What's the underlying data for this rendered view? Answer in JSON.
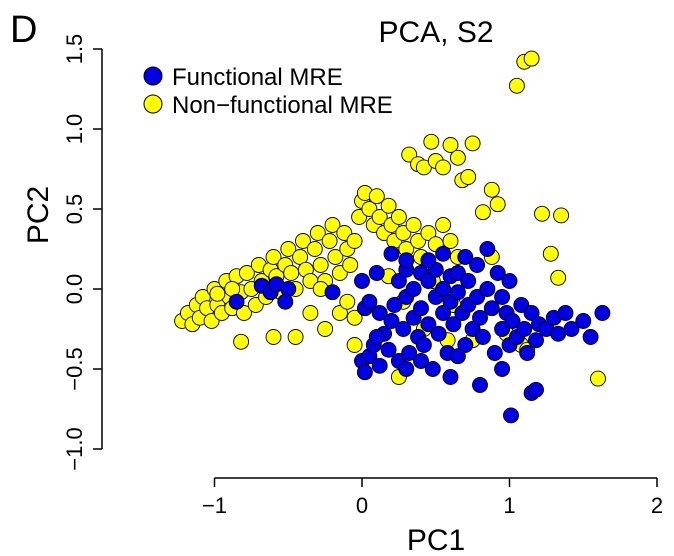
{
  "panel_label": "D",
  "chart_data": {
    "type": "scatter",
    "title": "PCA, S2",
    "xlabel": "PC1",
    "ylabel": "PC2",
    "xlim": [
      -1.3,
      2.05
    ],
    "ylim": [
      -1.15,
      1.6
    ],
    "x_ticks": [
      -1,
      0,
      1,
      2
    ],
    "x_tick_labels": [
      "−1",
      "0",
      "1",
      "2"
    ],
    "y_ticks": [
      -1.0,
      -0.5,
      0.0,
      0.5,
      1.0,
      1.5
    ],
    "y_tick_labels": [
      "−1.0",
      "−0.5",
      "0.0",
      "0.5",
      "1.0",
      "1.5"
    ],
    "grid": false,
    "legend_position": "top-left",
    "series": [
      {
        "name": "Functional MRE",
        "color": "#0000e6",
        "points": [
          [
            -0.85,
            -0.08
          ],
          [
            -0.68,
            0.02
          ],
          [
            -0.62,
            -0.02
          ],
          [
            -0.58,
            0.03
          ],
          [
            -0.5,
            0.0
          ],
          [
            -0.52,
            -0.08
          ],
          [
            -0.2,
            -0.02
          ],
          [
            0.0,
            0.05
          ],
          [
            0.02,
            -0.12
          ],
          [
            0.05,
            -0.08
          ],
          [
            0.1,
            0.1
          ],
          [
            0.12,
            -0.15
          ],
          [
            0.15,
            -0.28
          ],
          [
            0.0,
            -0.45
          ],
          [
            0.02,
            -0.52
          ],
          [
            0.05,
            -0.42
          ],
          [
            0.08,
            -0.35
          ],
          [
            0.1,
            -0.3
          ],
          [
            0.12,
            -0.48
          ],
          [
            0.18,
            -0.38
          ],
          [
            0.2,
            -0.2
          ],
          [
            0.22,
            -0.1
          ],
          [
            0.25,
            0.05
          ],
          [
            0.25,
            -0.45
          ],
          [
            0.28,
            -0.25
          ],
          [
            0.3,
            0.12
          ],
          [
            0.3,
            -0.05
          ],
          [
            0.32,
            -0.4
          ],
          [
            0.35,
            0.0
          ],
          [
            0.35,
            -0.18
          ],
          [
            0.38,
            -0.3
          ],
          [
            0.4,
            0.1
          ],
          [
            0.4,
            -0.12
          ],
          [
            0.42,
            -0.35
          ],
          [
            0.45,
            0.05
          ],
          [
            0.45,
            -0.22
          ],
          [
            0.48,
            -0.5
          ],
          [
            0.5,
            -0.05
          ],
          [
            0.5,
            0.12
          ],
          [
            0.52,
            -0.28
          ],
          [
            0.55,
            0.0
          ],
          [
            0.55,
            -0.15
          ],
          [
            0.58,
            -0.4
          ],
          [
            0.6,
            0.08
          ],
          [
            0.6,
            -0.08
          ],
          [
            0.62,
            -0.22
          ],
          [
            0.65,
            0.1
          ],
          [
            0.65,
            -0.02
          ],
          [
            0.68,
            -0.15
          ],
          [
            0.7,
            -0.35
          ],
          [
            0.72,
            0.05
          ],
          [
            0.72,
            -0.1
          ],
          [
            0.75,
            -0.25
          ],
          [
            0.78,
            0.15
          ],
          [
            0.78,
            -0.05
          ],
          [
            0.8,
            -0.18
          ],
          [
            0.82,
            -0.3
          ],
          [
            0.85,
            0.25
          ],
          [
            0.85,
            0.0
          ],
          [
            0.88,
            -0.12
          ],
          [
            0.9,
            -0.4
          ],
          [
            0.92,
            0.1
          ],
          [
            0.95,
            -0.05
          ],
          [
            0.95,
            -0.25
          ],
          [
            0.98,
            -0.15
          ],
          [
            1.0,
            0.05
          ],
          [
            1.0,
            -0.35
          ],
          [
            1.02,
            -0.2
          ],
          [
            1.05,
            -0.3
          ],
          [
            1.08,
            -0.1
          ],
          [
            1.1,
            -0.25
          ],
          [
            1.12,
            -0.4
          ],
          [
            1.15,
            -0.15
          ],
          [
            1.18,
            -0.32
          ],
          [
            1.2,
            -0.22
          ],
          [
            1.25,
            -0.25
          ],
          [
            1.3,
            -0.18
          ],
          [
            1.33,
            -0.28
          ],
          [
            1.38,
            -0.15
          ],
          [
            1.42,
            -0.25
          ],
          [
            1.5,
            -0.2
          ],
          [
            1.55,
            -0.3
          ],
          [
            1.63,
            -0.15
          ],
          [
            0.2,
            0.22
          ],
          [
            0.3,
            0.18
          ],
          [
            0.45,
            0.18
          ],
          [
            0.55,
            0.22
          ],
          [
            0.7,
            0.2
          ],
          [
            0.4,
            -0.45
          ],
          [
            0.6,
            -0.55
          ],
          [
            0.8,
            -0.6
          ],
          [
            0.95,
            -0.5
          ],
          [
            1.15,
            -0.65
          ],
          [
            1.18,
            -0.63
          ],
          [
            1.01,
            -0.79
          ],
          [
            0.3,
            -0.5
          ],
          [
            0.65,
            -0.42
          ]
        ]
      },
      {
        "name": "Non−functional MRE",
        "color": "#ffff00",
        "points": [
          [
            -1.22,
            -0.2
          ],
          [
            -1.18,
            -0.15
          ],
          [
            -1.15,
            -0.22
          ],
          [
            -1.12,
            -0.1
          ],
          [
            -1.1,
            -0.18
          ],
          [
            -1.08,
            -0.05
          ],
          [
            -1.05,
            -0.12
          ],
          [
            -1.02,
            -0.2
          ],
          [
            -1.0,
            0.0
          ],
          [
            -0.98,
            -0.1
          ],
          [
            -0.95,
            -0.15
          ],
          [
            -0.92,
            0.05
          ],
          [
            -0.9,
            -0.05
          ],
          [
            -0.88,
            -0.12
          ],
          [
            -0.85,
            0.08
          ],
          [
            -0.82,
            -0.02
          ],
          [
            -0.8,
            -0.15
          ],
          [
            -0.78,
            0.1
          ],
          [
            -0.75,
            0.0
          ],
          [
            -0.72,
            -0.1
          ],
          [
            -0.7,
            0.15
          ],
          [
            -0.68,
            0.05
          ],
          [
            -0.65,
            -0.05
          ],
          [
            -0.62,
            0.12
          ],
          [
            -0.6,
            0.2
          ],
          [
            -0.58,
            0.08
          ],
          [
            -0.55,
            -0.02
          ],
          [
            -0.52,
            0.15
          ],
          [
            -0.5,
            0.25
          ],
          [
            -0.48,
            0.1
          ],
          [
            -0.45,
            0.0
          ],
          [
            -0.42,
            0.2
          ],
          [
            -0.4,
            0.3
          ],
          [
            -0.38,
            0.12
          ],
          [
            -0.35,
            0.05
          ],
          [
            -0.32,
            0.25
          ],
          [
            -0.3,
            0.35
          ],
          [
            -0.28,
            0.15
          ],
          [
            -0.25,
            0.05
          ],
          [
            -0.22,
            0.3
          ],
          [
            -0.2,
            0.4
          ],
          [
            -0.18,
            0.2
          ],
          [
            -0.15,
            0.1
          ],
          [
            -0.12,
            0.35
          ],
          [
            -0.1,
            0.25
          ],
          [
            -0.08,
            0.15
          ],
          [
            -0.05,
            0.3
          ],
          [
            -0.02,
            0.45
          ],
          [
            0.0,
            0.55
          ],
          [
            0.02,
            0.6
          ],
          [
            0.05,
            0.5
          ],
          [
            0.08,
            0.4
          ],
          [
            0.1,
            0.58
          ],
          [
            0.12,
            0.45
          ],
          [
            0.15,
            0.35
          ],
          [
            0.18,
            0.52
          ],
          [
            0.2,
            0.4
          ],
          [
            0.22,
            0.3
          ],
          [
            0.25,
            0.45
          ],
          [
            0.28,
            0.35
          ],
          [
            0.3,
            0.25
          ],
          [
            0.35,
            0.4
          ],
          [
            0.38,
            0.3
          ],
          [
            0.4,
            0.2
          ],
          [
            0.45,
            0.35
          ],
          [
            0.5,
            0.28
          ],
          [
            0.55,
            0.4
          ],
          [
            0.6,
            0.3
          ],
          [
            0.65,
            0.2
          ],
          [
            0.32,
            0.84
          ],
          [
            0.38,
            0.78
          ],
          [
            0.42,
            0.76
          ],
          [
            0.47,
            0.92
          ],
          [
            0.5,
            0.8
          ],
          [
            0.55,
            0.76
          ],
          [
            0.6,
            0.9
          ],
          [
            0.65,
            0.82
          ],
          [
            0.68,
            0.68
          ],
          [
            0.72,
            0.7
          ],
          [
            0.75,
            0.91
          ],
          [
            0.82,
            0.48
          ],
          [
            0.88,
            0.62
          ],
          [
            0.92,
            0.53
          ],
          [
            1.05,
            1.27
          ],
          [
            1.1,
            1.42
          ],
          [
            1.15,
            1.44
          ],
          [
            1.22,
            0.47
          ],
          [
            1.28,
            0.22
          ],
          [
            1.35,
            0.46
          ],
          [
            1.33,
            0.07
          ],
          [
            1.6,
            -0.56
          ],
          [
            -0.82,
            -0.33
          ],
          [
            -0.6,
            -0.3
          ],
          [
            -0.45,
            -0.3
          ],
          [
            -0.25,
            -0.25
          ],
          [
            -0.15,
            -0.15
          ],
          [
            -0.1,
            -0.08
          ],
          [
            -0.05,
            -0.18
          ],
          [
            0.28,
            -0.08
          ],
          [
            0.62,
            -0.1
          ],
          [
            0.75,
            -0.32
          ],
          [
            0.98,
            -0.28
          ],
          [
            1.08,
            -0.35
          ],
          [
            1.12,
            -0.38
          ],
          [
            -0.98,
            -0.03
          ],
          [
            -0.88,
            0.0
          ],
          [
            -0.35,
            -0.15
          ],
          [
            -0.28,
            0.0
          ],
          [
            -0.05,
            -0.35
          ],
          [
            0.18,
            0.08
          ],
          [
            0.48,
            0.05
          ],
          [
            0.42,
            -0.25
          ],
          [
            0.58,
            -0.32
          ],
          [
            0.88,
            0.2
          ],
          [
            0.25,
            -0.55
          ]
        ]
      }
    ]
  }
}
